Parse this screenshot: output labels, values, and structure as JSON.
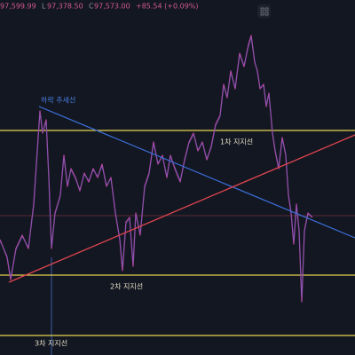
{
  "header": {
    "high_value": "97,599.99",
    "low_label": "L",
    "low_value": "97,378.50",
    "close_label": "C",
    "close_value": "97,573.00",
    "change": "+85.54 (+0.09%)"
  },
  "annotations": {
    "trend_line": "하락 추세선",
    "support_1": "1차 지지선",
    "support_2": "2차 지지선",
    "support_3": "3차 지지선"
  }
}
